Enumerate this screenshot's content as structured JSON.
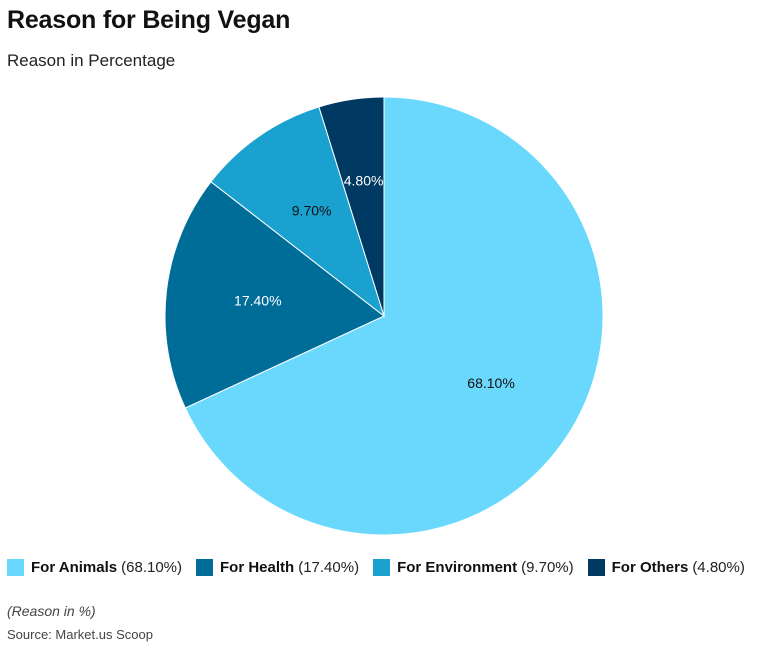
{
  "chart_data": {
    "type": "pie",
    "title": "Reason for Being Vegan",
    "subtitle": "Reason in Percentage",
    "unit": "%",
    "legend_position": "bottom",
    "series": [
      {
        "name": "For Animals",
        "value": 68.1,
        "label": "68.10%",
        "legend_value": "(68.10%)",
        "color": "#6ad8fd",
        "label_color": "#111111"
      },
      {
        "name": "For Health",
        "value": 17.4,
        "label": "17.40%",
        "legend_value": "(17.40%)",
        "color": "#006d98",
        "label_color": "#ffffff"
      },
      {
        "name": "For Environment",
        "value": 9.7,
        "label": "9.70%",
        "legend_value": "(9.70%)",
        "color": "#1aa1d0",
        "label_color": "#111111"
      },
      {
        "name": "For Others",
        "value": 4.8,
        "label": "4.80%",
        "legend_value": "(4.80%)",
        "color": "#003a62",
        "label_color": "#ffffff"
      }
    ]
  },
  "footer": {
    "note": "(Reason in %)",
    "source": "Source: Market.us Scoop"
  }
}
